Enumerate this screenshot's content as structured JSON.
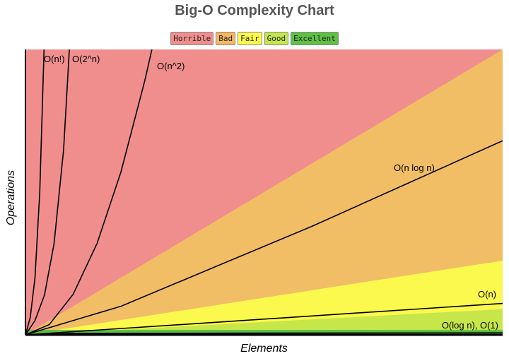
{
  "chart_data": {
    "type": "line",
    "title": "Big-O Complexity Chart",
    "xlabel": "Elements",
    "ylabel": "Operations",
    "xlim": [
      0,
      100
    ],
    "ylim": [
      0,
      100
    ],
    "legend": [
      {
        "label": "Horrible",
        "color": "#f08e8e"
      },
      {
        "label": "Bad",
        "color": "#f5b860"
      },
      {
        "label": "Fair",
        "color": "#fdf94d"
      },
      {
        "label": "Good",
        "color": "#c6e64a"
      },
      {
        "label": "Excellent",
        "color": "#5fc046"
      }
    ],
    "regions": [
      {
        "name": "Horrible",
        "color": "#f08e8e",
        "upper_at_x100": null
      },
      {
        "name": "Bad",
        "color": "#f2be65",
        "upper_at_x100": 100
      },
      {
        "name": "Fair",
        "color": "#fbf84e",
        "upper_at_x100": 26
      },
      {
        "name": "Good",
        "color": "#c6e64a",
        "upper_at_x100": 9
      },
      {
        "name": "Excellent",
        "color": "#58be44",
        "upper_at_x100": 1.7
      }
    ],
    "series": [
      {
        "name": "O(n!)",
        "x": [
          0,
          1,
          2,
          3,
          3.9
        ],
        "y": [
          0,
          6,
          20,
          50,
          100
        ]
      },
      {
        "name": "O(2^n)",
        "x": [
          0,
          2,
          4,
          6,
          8,
          9.2
        ],
        "y": [
          0,
          5,
          14,
          32,
          65,
          100
        ]
      },
      {
        "name": "O(n^2)",
        "x": [
          0,
          5,
          10,
          15,
          20,
          25,
          26.5
        ],
        "y": [
          0,
          3.6,
          14.2,
          32,
          57,
          89,
          100
        ]
      },
      {
        "name": "O(n log n)",
        "x": [
          0,
          20,
          40,
          60,
          80,
          100
        ],
        "y": [
          0,
          10,
          24,
          38,
          53,
          68
        ]
      },
      {
        "name": "O(n)",
        "x": [
          0,
          100
        ],
        "y": [
          0,
          11
        ]
      },
      {
        "name": "O(log n), O(1)",
        "x": [
          0,
          10,
          50,
          100
        ],
        "y": [
          0,
          0.5,
          0.6,
          0.7
        ]
      }
    ]
  }
}
